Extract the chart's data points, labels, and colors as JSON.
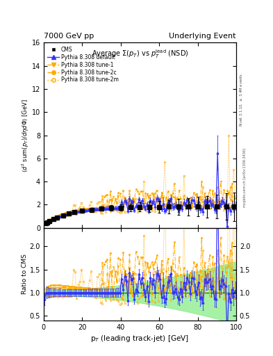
{
  "title_left": "7000 GeV pp",
  "title_right": "Underlying Event",
  "plot_title": "Average $\\Sigma(p_T)$ vs $p_T^{\\rm lead}$ (NSD)",
  "xlabel": "p$_T$ (leading track-jet) [GeV]",
  "ylabel_main": "$\\langle d^2$ sum$(p_T)/d\\eta d\\Phi\\rangle$ [GeV]",
  "ylabel_ratio": "Ratio to CMS",
  "right_label_top": "Rivet 3.1.10, $\\geq$ 3.4M events",
  "right_label_bot": "mcplots.cern.ch [arXiv:1306.3436]",
  "xlim": [
    0,
    100
  ],
  "ylim_main": [
    0,
    16
  ],
  "ylim_ratio": [
    0.4,
    2.4
  ],
  "ratio_yticks": [
    0.5,
    1.0,
    1.5,
    2.0
  ],
  "main_yticks": [
    0,
    2,
    4,
    6,
    8,
    10,
    12,
    14,
    16
  ],
  "cms_color": "#000000",
  "default_color": "#3333ff",
  "tune_color": "#ffaa00",
  "tune2m_color": "#cc8800",
  "green_band_color": "#90ee90",
  "green_line_color": "#008000"
}
